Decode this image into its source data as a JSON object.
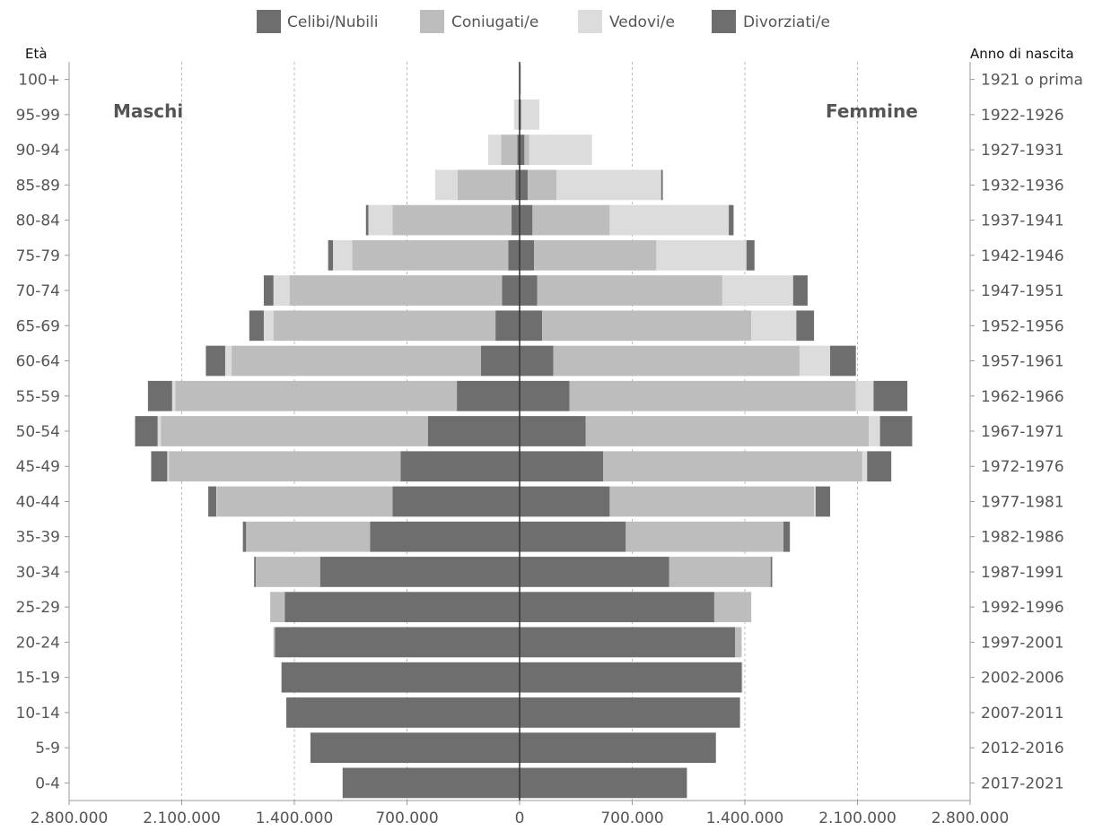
{
  "chart_data": {
    "type": "bar",
    "orientation": "population-pyramid",
    "left_label": "Maschi",
    "right_label": "Femmine",
    "left_axis_title": "Età",
    "right_axis_title": "Anno di nascita",
    "xlim": [
      -2800000,
      2800000
    ],
    "x_ticks": [
      -2800000,
      -2100000,
      -1400000,
      -700000,
      0,
      700000,
      1400000,
      2100000,
      2800000
    ],
    "x_tick_labels": [
      "2.800.000",
      "2.100.000",
      "1.400.000",
      "700.000",
      "0",
      "700.000",
      "1.400.000",
      "2.100.000",
      "2.800.000"
    ],
    "grid": true,
    "legend_position": "top",
    "series_colors": {
      "Celibi/Nubili": "#6e6e6e",
      "Coniugati/e": "#bdbdbd",
      "Vedovi/e": "#dcdcdc",
      "Divorziati/e": "#6e6e6e"
    },
    "series": [
      {
        "name": "Celibi/Nubili"
      },
      {
        "name": "Coniugati/e"
      },
      {
        "name": "Vedovi/e"
      },
      {
        "name": "Divorziati/e"
      }
    ],
    "categories": [
      "100+",
      "95-99",
      "90-94",
      "85-89",
      "80-84",
      "75-79",
      "70-74",
      "65-69",
      "60-64",
      "55-59",
      "50-54",
      "45-49",
      "40-44",
      "35-39",
      "30-34",
      "25-29",
      "20-24",
      "15-19",
      "10-14",
      "5-9",
      "0-4"
    ],
    "birth_years": [
      "1921 o prima",
      "1922-1926",
      "1927-1931",
      "1932-1936",
      "1937-1941",
      "1942-1946",
      "1947-1951",
      "1952-1956",
      "1957-1961",
      "1962-1966",
      "1967-1971",
      "1972-1976",
      "1977-1981",
      "1982-1986",
      "1987-1991",
      "1992-1996",
      "1997-2001",
      "2002-2006",
      "2007-2011",
      "2012-2016",
      "2017-2021"
    ],
    "males": {
      "Celibi/Nubili": [
        2000,
        5000,
        15000,
        25000,
        50000,
        70000,
        110000,
        150000,
        240000,
        390000,
        570000,
        740000,
        790000,
        930000,
        1240000,
        1460000,
        1520000,
        1480000,
        1450000,
        1300000,
        1100000
      ],
      "Coniugati/e": [
        0,
        5000,
        100000,
        360000,
        740000,
        970000,
        1320000,
        1380000,
        1550000,
        1750000,
        1660000,
        1440000,
        1090000,
        770000,
        400000,
        90000,
        10000,
        0,
        0,
        0,
        0
      ],
      "Vedovi/e": [
        2000,
        25000,
        80000,
        140000,
        150000,
        120000,
        100000,
        60000,
        40000,
        20000,
        20000,
        10000,
        5000,
        0,
        0,
        0,
        0,
        0,
        0,
        0,
        0
      ],
      "Divorziati/e": [
        0,
        0,
        0,
        0,
        15000,
        30000,
        60000,
        90000,
        120000,
        150000,
        140000,
        100000,
        50000,
        20000,
        10000,
        0,
        0,
        0,
        0,
        0,
        0
      ]
    },
    "females": {
      "Celibi/Nubili": [
        3000,
        8000,
        30000,
        50000,
        80000,
        90000,
        110000,
        140000,
        210000,
        310000,
        410000,
        520000,
        560000,
        660000,
        930000,
        1210000,
        1340000,
        1380000,
        1370000,
        1220000,
        1040000
      ],
      "Coniugati/e": [
        0,
        5000,
        30000,
        180000,
        480000,
        760000,
        1150000,
        1300000,
        1530000,
        1780000,
        1760000,
        1610000,
        1270000,
        980000,
        630000,
        230000,
        40000,
        5000,
        0,
        0,
        0
      ],
      "Vedovi/e": [
        8000,
        110000,
        390000,
        650000,
        740000,
        560000,
        440000,
        280000,
        190000,
        110000,
        70000,
        30000,
        10000,
        0,
        0,
        0,
        0,
        0,
        0,
        0,
        0
      ],
      "Divorziati/e": [
        0,
        0,
        0,
        10000,
        30000,
        50000,
        90000,
        110000,
        160000,
        210000,
        200000,
        150000,
        90000,
        40000,
        10000,
        0,
        0,
        0,
        0,
        0,
        0
      ]
    }
  }
}
